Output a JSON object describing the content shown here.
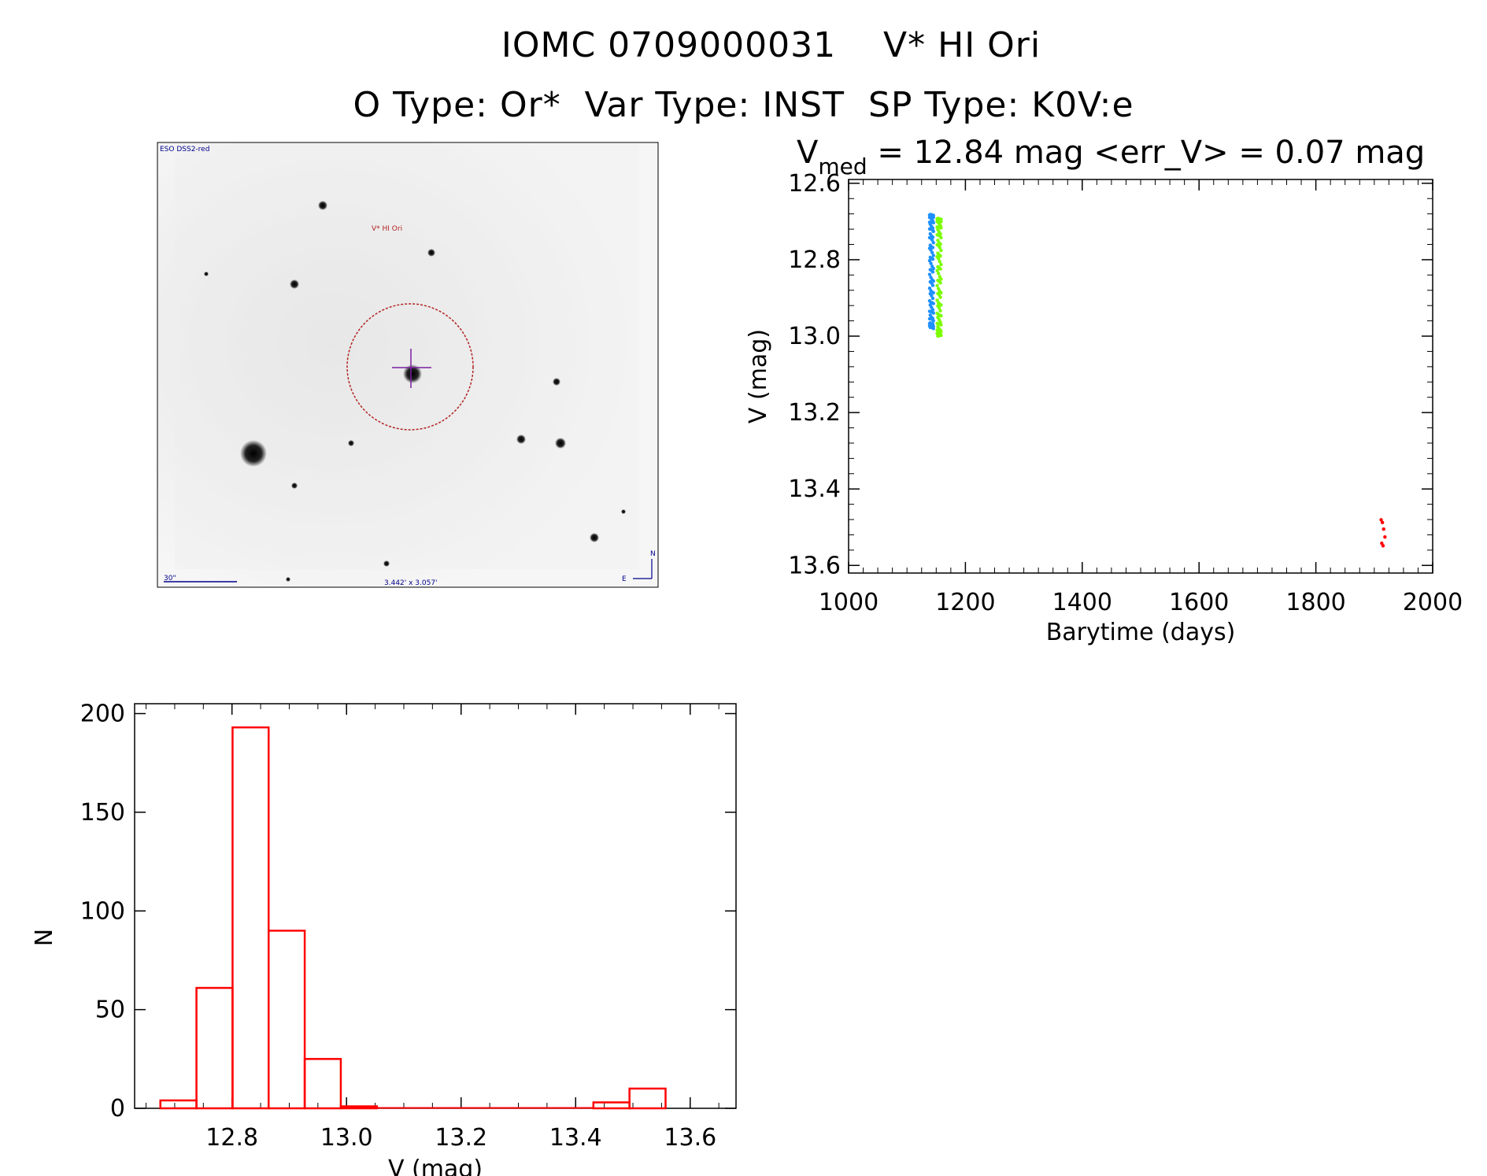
{
  "header": {
    "title_line1": "IOMC 0709000031    V* HI Ori",
    "title_line2": "O Type: Or*  Var Type: INST  SP Type: K0V:e"
  },
  "finder_image": {
    "survey_label": "ESO DSS2-red",
    "target_label": "V* HI Ori",
    "scale_label": "30\"",
    "fov_label": "3.442' x 3.057'",
    "compass_north": "N",
    "compass_east": "E",
    "circle_color": "#b22222",
    "crosshair_color": "#7b1fa2"
  },
  "lightcurve_title": {
    "prefix": "V",
    "subscript": "med",
    "text": " = 12.84 mag <err_V> = 0.07 mag"
  },
  "chart_data": [
    {
      "type": "scatter",
      "name": "light-curve",
      "xlabel": "Barytime (days)",
      "ylabel": "V (mag)",
      "xlim": [
        1000,
        2000
      ],
      "ylim": [
        13.62,
        12.59
      ],
      "xticks": [
        "1000",
        "1200",
        "1400",
        "1600",
        "1800",
        "2000"
      ],
      "yticks": [
        "12.6",
        "12.8",
        "13.0",
        "13.2",
        "13.4",
        "13.6"
      ],
      "series": [
        {
          "name": "blue",
          "color": "#1e90ff",
          "x": 1142,
          "v_min": 12.68,
          "v_max": 12.98,
          "n": 95
        },
        {
          "name": "green",
          "color": "#7cfc00",
          "x": 1155,
          "v_min": 12.69,
          "v_max": 13.0,
          "n": 90
        },
        {
          "name": "red",
          "color": "#ff0000",
          "x": 1915,
          "v_min": 13.48,
          "v_max": 13.55,
          "n": 6
        }
      ]
    },
    {
      "type": "bar",
      "name": "histogram",
      "xlabel": "V (mag)",
      "ylabel": "N",
      "xlim": [
        12.63,
        13.68
      ],
      "ylim": [
        0,
        205
      ],
      "xticks": [
        "12.8",
        "13.0",
        "13.2",
        "13.4",
        "13.6"
      ],
      "yticks": [
        "0",
        "50",
        "100",
        "150",
        "200"
      ],
      "color": "#ff0000",
      "bin_width": 0.063,
      "bins": [
        {
          "start": 12.675,
          "count": 4
        },
        {
          "start": 12.738,
          "count": 61
        },
        {
          "start": 12.801,
          "count": 193
        },
        {
          "start": 12.864,
          "count": 90
        },
        {
          "start": 12.927,
          "count": 25
        },
        {
          "start": 12.99,
          "count": 1
        },
        {
          "start": 13.053,
          "count": 0
        },
        {
          "start": 13.116,
          "count": 0
        },
        {
          "start": 13.179,
          "count": 0
        },
        {
          "start": 13.242,
          "count": 0
        },
        {
          "start": 13.305,
          "count": 0
        },
        {
          "start": 13.368,
          "count": 0
        },
        {
          "start": 13.431,
          "count": 3
        },
        {
          "start": 13.494,
          "count": 10
        }
      ]
    }
  ]
}
